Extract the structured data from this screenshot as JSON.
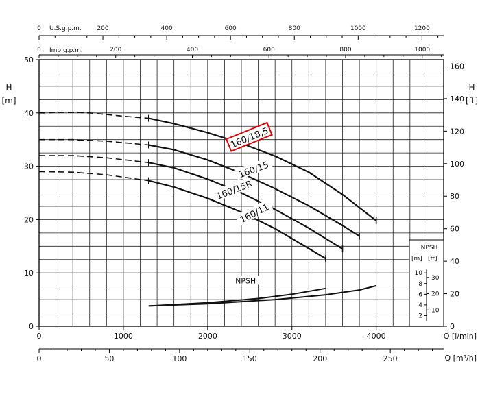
{
  "chart_data": {
    "type": "line",
    "title": "",
    "axes": {
      "flow_lmin": {
        "label": "Q [l/min]",
        "range": [
          0,
          4800
        ],
        "ticks": [
          0,
          1000,
          2000,
          3000,
          4000
        ]
      },
      "flow_m3h": {
        "label": "Q [m³/h]",
        "range": [
          0,
          288
        ],
        "ticks": [
          0,
          50,
          100,
          150,
          200,
          250
        ]
      },
      "flow_usgpm": {
        "label": "U.S.g.p.m.",
        "range": [
          0,
          1268
        ],
        "ticks": [
          0,
          200,
          400,
          600,
          800,
          1000,
          1200
        ]
      },
      "flow_impgpm": {
        "label": "Imp.g.p.m.",
        "range": [
          0,
          1056
        ],
        "ticks": [
          0,
          200,
          400,
          600,
          800,
          1000
        ]
      },
      "head_m": {
        "label_top": "H",
        "label_bottom": "[m]",
        "range": [
          0,
          50
        ],
        "ticks": [
          0,
          10,
          20,
          30,
          40,
          50
        ]
      },
      "head_ft": {
        "label_top": "H",
        "label_bottom": "[ft]",
        "range": [
          0,
          164
        ],
        "ticks": [
          0,
          20,
          40,
          60,
          80,
          100,
          120,
          140,
          160
        ]
      },
      "npsh": {
        "title": "NPSH",
        "unit_m": "[m]",
        "unit_ft": "[ft]",
        "ticks_m": [
          "2",
          "4",
          "6",
          "8",
          "10"
        ],
        "ticks_ft": [
          "10",
          "20",
          "30"
        ]
      }
    },
    "grid": true,
    "series": [
      {
        "name": "160/18,5",
        "highlighted": true,
        "dashed_x": [
          0,
          100,
          200,
          400,
          600,
          800,
          1000,
          1300
        ],
        "dashed_y": [
          40,
          40,
          40.1,
          40.1,
          40,
          39.7,
          39.4,
          39
        ],
        "x": [
          1300,
          1600,
          2000,
          2400,
          2800,
          3200,
          3600,
          4000
        ],
        "y": [
          39,
          38,
          36.3,
          34.3,
          31.9,
          28.9,
          24.7,
          19.8
        ]
      },
      {
        "name": "160/15",
        "highlighted": false,
        "dashed_x": [
          0,
          400,
          800,
          1300
        ],
        "dashed_y": [
          35,
          35,
          34.7,
          34
        ],
        "x": [
          1300,
          1600,
          2000,
          2400,
          2800,
          3200,
          3600,
          3800
        ],
        "y": [
          34,
          33.1,
          31.2,
          28.7,
          25.8,
          22.6,
          18.9,
          16.9
        ]
      },
      {
        "name": "160/15R",
        "highlighted": false,
        "dashed_x": [
          0,
          400,
          800,
          1300
        ],
        "dashed_y": [
          32,
          32,
          31.6,
          30.7
        ],
        "x": [
          1300,
          1600,
          2000,
          2400,
          2800,
          3200,
          3600
        ],
        "y": [
          30.7,
          29.7,
          27.6,
          25,
          21.9,
          18.4,
          14.5
        ]
      },
      {
        "name": "160/11",
        "highlighted": false,
        "dashed_x": [
          0,
          400,
          800,
          1300
        ],
        "dashed_y": [
          29,
          28.9,
          28.4,
          27.3
        ],
        "x": [
          1300,
          1600,
          2000,
          2400,
          2800,
          3400
        ],
        "y": [
          27.3,
          26.1,
          24,
          21.4,
          18.3,
          12.7
        ]
      }
    ],
    "npsh_label": "NPSH",
    "npsh_series": [
      {
        "x": [
          1300,
          2000,
          2600,
          3000,
          3400
        ],
        "y": [
          3.8,
          4.4,
          5.2,
          6,
          7.1
        ]
      },
      {
        "x": [
          1300,
          2000,
          2800,
          3400,
          3800,
          4000
        ],
        "y": [
          3.8,
          4.2,
          5,
          5.9,
          6.8,
          7.6
        ]
      }
    ]
  }
}
